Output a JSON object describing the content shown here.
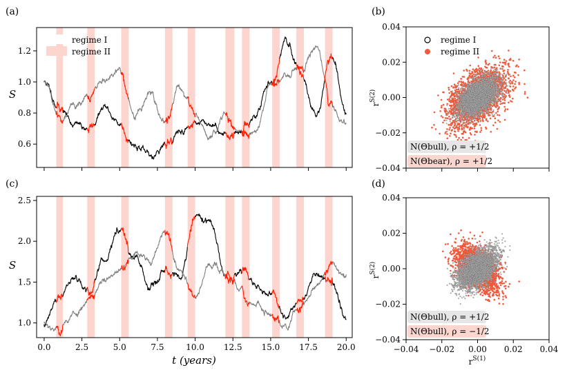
{
  "panels": {
    "a": {
      "label": "(a)"
    },
    "b": {
      "label": "(b)"
    },
    "c": {
      "label": "(c)"
    },
    "d": {
      "label": "(d)"
    }
  },
  "legend": {
    "regime1": "regime I",
    "regime2": "regime II"
  },
  "annotations": {
    "b_line1": "N(Θbull), ρ = +1/2",
    "b_line2": "N(Θbear), ρ = +1/2",
    "d_line1": "N(Θbull), ρ = +1/2",
    "d_line2": "N(Θbull), ρ = −1/2"
  },
  "colors": {
    "bear_shade": "#fdd5cf",
    "red": "#ff1a00",
    "black": "#000000",
    "gray": "#808080",
    "scatter_red": "#f05a3c",
    "scatter_gray": "#b4b4b4",
    "box_gray": "#e6e6e6",
    "box_red": "#fbd6cf"
  },
  "chart_data": [
    {
      "panel": "a",
      "type": "line",
      "xlabel": "",
      "ylabel": "S",
      "xlim": [
        -0.5,
        20.4
      ],
      "ylim": [
        0.45,
        1.35
      ],
      "yticks": [
        0.6,
        0.8,
        1.0,
        1.2
      ],
      "ytick_labels": [
        "0.6",
        "0.8",
        "1.0",
        "1.2"
      ],
      "bear_intervals": [
        [
          0.8,
          1.25
        ],
        [
          2.85,
          3.35
        ],
        [
          5.1,
          5.6
        ],
        [
          8.0,
          8.5
        ],
        [
          9.5,
          10.0
        ],
        [
          12.0,
          12.6
        ],
        [
          13.1,
          13.6
        ],
        [
          15.1,
          15.6
        ],
        [
          16.7,
          17.2
        ],
        [
          18.6,
          19.1
        ]
      ],
      "series": [
        {
          "color": "black",
          "seed": 11,
          "start": 1.0,
          "values": [
            1.0,
            0.84,
            0.73,
            0.7,
            0.83,
            0.73,
            0.6,
            0.52,
            0.6,
            0.68,
            0.74,
            0.73,
            0.66,
            0.68,
            0.79,
            1.0,
            1.25,
            1.07,
            0.78,
            1.16,
            0.8
          ]
        },
        {
          "color": "gray",
          "seed": 29,
          "start": 1.0,
          "values": [
            1.0,
            0.76,
            0.85,
            0.9,
            1.0,
            1.07,
            0.78,
            0.91,
            0.75,
            0.95,
            0.8,
            0.63,
            0.8,
            0.67,
            0.69,
            0.99,
            1.02,
            1.1,
            1.23,
            0.87,
            0.73
          ]
        }
      ]
    },
    {
      "panel": "c",
      "type": "line",
      "xlabel": "t (years)",
      "ylabel": "S",
      "xlim": [
        -0.5,
        20.4
      ],
      "ylim": [
        0.82,
        2.55
      ],
      "xticks": [
        0,
        2.5,
        5,
        7.5,
        10,
        12.5,
        15,
        17.5,
        20
      ],
      "xtick_labels": [
        "0.0",
        "2.5",
        "5.0",
        "7.5",
        "10.0",
        "12.5",
        "15.0",
        "17.5",
        "20.0"
      ],
      "yticks": [
        1.0,
        1.5,
        2.0,
        2.5
      ],
      "ytick_labels": [
        "1.0",
        "1.5",
        "2.0",
        "2.5"
      ],
      "bear_intervals": [
        [
          0.8,
          1.25
        ],
        [
          2.85,
          3.35
        ],
        [
          5.1,
          5.6
        ],
        [
          8.0,
          8.5
        ],
        [
          9.5,
          10.0
        ],
        [
          12.0,
          12.6
        ],
        [
          13.1,
          13.6
        ],
        [
          15.1,
          15.6
        ],
        [
          16.7,
          17.2
        ],
        [
          18.6,
          19.1
        ]
      ],
      "series": [
        {
          "color": "black",
          "seed": 47,
          "start": 1.0,
          "values": [
            1.0,
            1.3,
            1.55,
            1.4,
            1.78,
            2.15,
            1.8,
            1.42,
            1.6,
            1.55,
            2.3,
            2.25,
            1.55,
            1.6,
            1.45,
            1.32,
            1.08,
            1.28,
            1.6,
            1.5,
            1.1
          ]
        },
        {
          "color": "gray",
          "seed": 53,
          "start": 1.0,
          "values": [
            1.0,
            0.92,
            1.1,
            1.32,
            1.5,
            1.62,
            1.85,
            1.75,
            2.15,
            1.62,
            1.35,
            1.7,
            1.6,
            1.4,
            1.22,
            1.1,
            0.98,
            1.2,
            1.45,
            1.72,
            1.55
          ]
        }
      ]
    },
    {
      "panel": "b",
      "type": "scatter",
      "xlim": [
        -0.04,
        0.04
      ],
      "ylim": [
        -0.04,
        0.04
      ],
      "ytick_labels": [
        "−0.04",
        "−0.02",
        "0.00",
        "0.02",
        "0.04"
      ],
      "ylabel": "r^S(2)",
      "series": [
        {
          "name": "regime I",
          "color": "scatter_red",
          "mean": [
            0.0,
            0.0
          ],
          "std": [
            0.0085,
            0.0085
          ],
          "rho": 0.5,
          "n": 2200,
          "seed": 7
        },
        {
          "name": "regime II",
          "color": "scatter_gray",
          "mean": [
            0.0,
            0.0
          ],
          "std": [
            0.0055,
            0.0055
          ],
          "rho": 0.5,
          "n": 3600,
          "seed": 9
        }
      ]
    },
    {
      "panel": "d",
      "type": "scatter",
      "xlim": [
        -0.04,
        0.04
      ],
      "ylim": [
        -0.04,
        0.04
      ],
      "xtick_labels": [
        "−0.04",
        "−0.02",
        "0.00",
        "0.02",
        "0.04"
      ],
      "ytick_labels": [
        "−0.04",
        "−0.02",
        "0.00",
        "0.02",
        "0.04"
      ],
      "xlabel": "r^S(1)",
      "ylabel": "r^S(2)",
      "series": [
        {
          "color": "scatter_red",
          "mean": [
            0.0,
            0.0
          ],
          "std": [
            0.0062,
            0.0062
          ],
          "rho": -0.5,
          "n": 2000,
          "seed": 13
        },
        {
          "color": "scatter_gray",
          "mean": [
            0.0,
            0.0
          ],
          "std": [
            0.0055,
            0.0055
          ],
          "rho": 0.5,
          "n": 3600,
          "seed": 17
        }
      ]
    }
  ]
}
